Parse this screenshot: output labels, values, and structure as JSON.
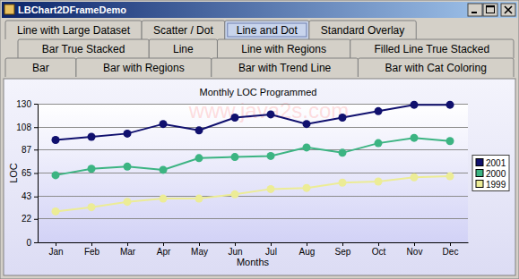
{
  "window": {
    "title": "LBChart2DFrameDemo",
    "watermark": "www.java2s.com",
    "tabs": [
      [
        {
          "label": "Line with Large Dataset"
        },
        {
          "label": "Scatter / Dot"
        },
        {
          "label": "Line and Dot",
          "selected": true
        },
        {
          "label": "Standard Overlay"
        }
      ],
      [
        {
          "label": "Bar True Stacked"
        },
        {
          "label": "Line"
        },
        {
          "label": "Line with Regions"
        },
        {
          "label": "Filled Line True Stacked"
        }
      ],
      [
        {
          "label": "Bar"
        },
        {
          "label": "Bar with Regions"
        },
        {
          "label": "Bar with Trend Line"
        },
        {
          "label": "Bar with Cat Coloring"
        }
      ]
    ]
  },
  "chart_data": {
    "type": "line",
    "title": "Monthly LOC Programmed",
    "x_label": "Months",
    "y_label": "LOC",
    "categories": [
      "Jan",
      "Feb",
      "Mar",
      "Apr",
      "May",
      "Jun",
      "Jul",
      "Aug",
      "Sep",
      "Oct",
      "Nov",
      "Dec"
    ],
    "series": [
      {
        "name": "2001",
        "color": "#10106e",
        "values": [
          96,
          99,
          102,
          111,
          105,
          117,
          120,
          111,
          117,
          123,
          129,
          129
        ]
      },
      {
        "name": "2000",
        "color": "#3cb482",
        "values": [
          63,
          69,
          71,
          68,
          79,
          80,
          81,
          89,
          84,
          93,
          98,
          95
        ]
      },
      {
        "name": "1999",
        "color": "#ecec96",
        "values": [
          29,
          33,
          38,
          41,
          41,
          45,
          50,
          51,
          56,
          57,
          61,
          62
        ]
      }
    ],
    "ylim": [
      0,
      130
    ],
    "yticks": [
      0,
      22,
      43,
      65,
      87,
      108,
      130
    ],
    "grid": true,
    "legend": "right",
    "marker": "circle",
    "line_style": "solid"
  }
}
